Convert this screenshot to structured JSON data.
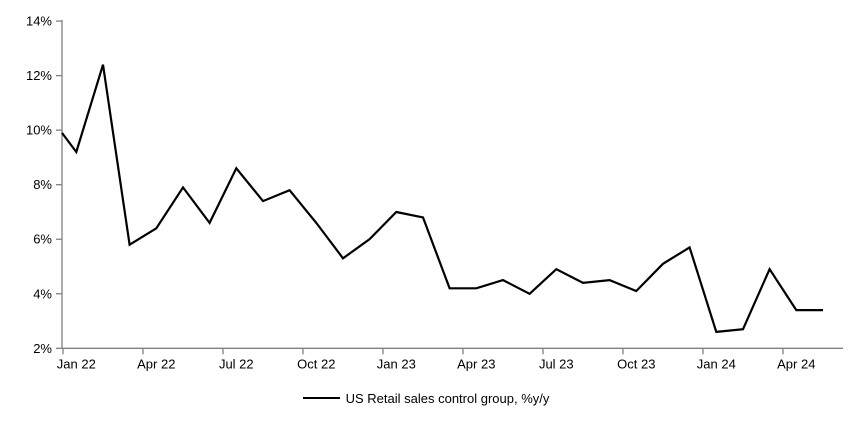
{
  "chart_data": {
    "type": "line",
    "title": "",
    "categories": [
      "Jan 22",
      "Feb 22",
      "Mar 22",
      "Apr 22",
      "May 22",
      "Jun 22",
      "Jul 22",
      "Aug 22",
      "Sep 22",
      "Oct 22",
      "Nov 22",
      "Dec 22",
      "Jan 23",
      "Feb 23",
      "Mar 23",
      "Apr 23",
      "May 23",
      "Jun 23",
      "Jul 23",
      "Aug 23",
      "Sep 23",
      "Oct 23",
      "Nov 23",
      "Dec 23",
      "Jan 24",
      "Feb 24",
      "Mar 24",
      "Apr 24",
      "May 24"
    ],
    "series": [
      {
        "name": "US Retail sales control group, %y/y",
        "color": "#000000",
        "values": [
          9.2,
          12.4,
          5.8,
          6.4,
          7.9,
          6.6,
          8.6,
          7.4,
          7.8,
          6.6,
          5.3,
          6.0,
          7.0,
          6.8,
          4.2,
          4.2,
          4.5,
          4.0,
          4.9,
          4.4,
          4.5,
          4.1,
          5.1,
          5.7,
          2.6,
          2.7,
          4.9,
          3.4,
          3.4
        ]
      }
    ],
    "left_edge_clip_value": 9.9,
    "x_axis_tick_labels": [
      "Jan 22",
      "Apr 22",
      "Jul 22",
      "Oct 22",
      "Jan 23",
      "Apr 23",
      "Jul 23",
      "Oct 23",
      "Jan 24",
      "Apr 24"
    ],
    "y_axis_tick_labels": [
      "2%",
      "4%",
      "6%",
      "8%",
      "10%",
      "12%",
      "14%"
    ],
    "ylim": [
      2,
      14
    ],
    "y_tick_step": 2,
    "grid": false,
    "legend_position": "bottom-center",
    "axis_color": "#808080",
    "text_color": "#000000",
    "background": "#ffffff"
  }
}
